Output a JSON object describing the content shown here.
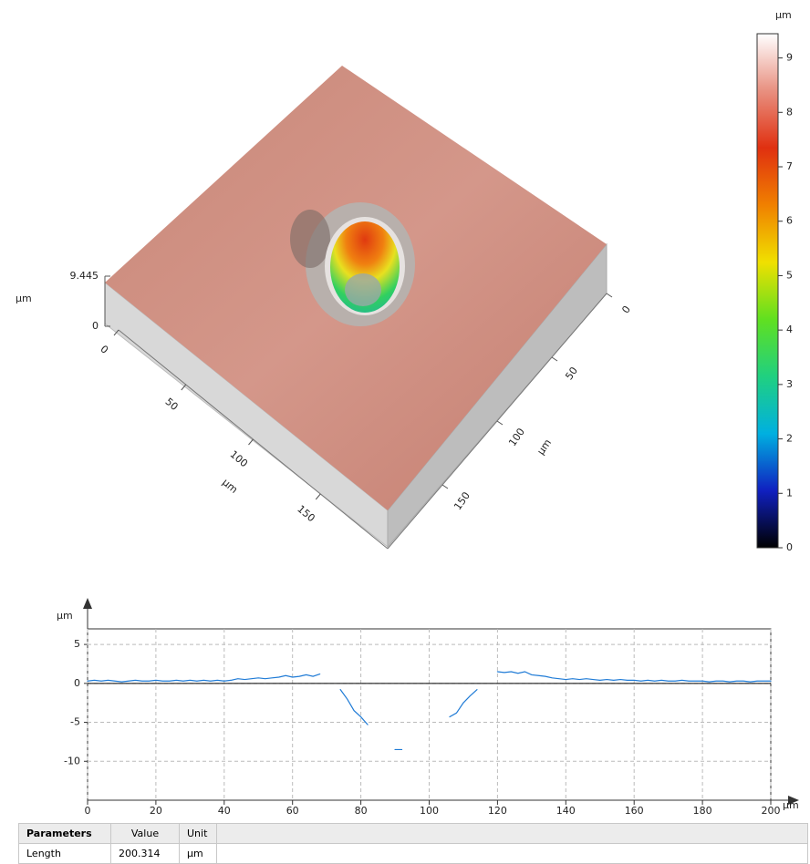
{
  "chart_data": [
    {
      "type": "surface",
      "x_label": "µm",
      "y_label": "µm",
      "z_label": "µm",
      "xlim": [
        0,
        200
      ],
      "xticks": [
        0,
        50,
        100,
        150
      ],
      "ylim": [
        0,
        200
      ],
      "yticks": [
        0,
        50,
        100,
        150
      ],
      "zlim": [
        0,
        9.445
      ],
      "zticks": [
        0,
        9.445
      ],
      "colorbar": {
        "label": "µm",
        "clim": [
          0,
          9.445
        ],
        "ticks": [
          0,
          1,
          2,
          3,
          4,
          5,
          6,
          7,
          8,
          9
        ],
        "colormap": [
          "#000000",
          "#1020c0",
          "#00b0e0",
          "#20d080",
          "#60e020",
          "#f0e000",
          "#f08000",
          "#e03010",
          "#e89080",
          "#ffffff"
        ]
      }
    },
    {
      "type": "line",
      "x_label": "µm",
      "y_label": "µm",
      "x": [
        0,
        2,
        4,
        6,
        8,
        10,
        12,
        14,
        16,
        18,
        20,
        22,
        24,
        26,
        28,
        30,
        32,
        34,
        36,
        38,
        40,
        42,
        44,
        46,
        48,
        50,
        52,
        54,
        56,
        58,
        60,
        62,
        64,
        66,
        68,
        70,
        72,
        74,
        76,
        78,
        80,
        82,
        84,
        86,
        88,
        90,
        92,
        94,
        96,
        98,
        100,
        102,
        104,
        106,
        108,
        110,
        112,
        114,
        116,
        118,
        120,
        122,
        124,
        126,
        128,
        130,
        132,
        134,
        136,
        138,
        140,
        142,
        144,
        146,
        148,
        150,
        152,
        154,
        156,
        158,
        160,
        162,
        164,
        166,
        168,
        170,
        172,
        174,
        176,
        178,
        180,
        182,
        184,
        186,
        188,
        190,
        192,
        194,
        196,
        198,
        200
      ],
      "series": [
        {
          "color": "#1f7bd6",
          "values": [
            0.3,
            0.4,
            0.3,
            0.4,
            0.3,
            0.2,
            0.3,
            0.4,
            0.3,
            0.3,
            0.4,
            0.3,
            0.3,
            0.4,
            0.3,
            0.4,
            0.3,
            0.4,
            0.3,
            0.4,
            0.3,
            0.4,
            0.6,
            0.5,
            0.6,
            0.7,
            0.6,
            0.7,
            0.8,
            1.0,
            0.8,
            0.9,
            1.1,
            0.9,
            1.2,
            null,
            null,
            -0.8,
            -2.0,
            -3.5,
            -4.3,
            -5.3,
            null,
            null,
            null,
            -8.5,
            -8.5,
            null,
            null,
            null,
            null,
            null,
            null,
            -4.3,
            -3.8,
            -2.5,
            -1.6,
            -0.8,
            null,
            null,
            1.5,
            1.4,
            1.5,
            1.3,
            1.5,
            1.1,
            1.0,
            0.9,
            0.7,
            0.6,
            0.5,
            0.6,
            0.5,
            0.6,
            0.5,
            0.4,
            0.5,
            0.4,
            0.5,
            0.4,
            0.4,
            0.3,
            0.4,
            0.3,
            0.4,
            0.3,
            0.3,
            0.4,
            0.3,
            0.3,
            0.3,
            0.2,
            0.3,
            0.3,
            0.2,
            0.3,
            0.3,
            0.2,
            0.3,
            0.3,
            0.3
          ]
        }
      ],
      "xlim": [
        0,
        200
      ],
      "xticks": [
        0,
        20,
        40,
        60,
        80,
        100,
        120,
        140,
        160,
        180,
        200
      ],
      "ylim": [
        -15,
        7
      ],
      "yticks": [
        5,
        0,
        -5,
        -10
      ],
      "grid": true
    }
  ],
  "table": {
    "header": [
      "Parameters",
      "Value",
      "Unit"
    ],
    "rows": [
      [
        "Length",
        "200.314",
        "µm"
      ]
    ]
  }
}
